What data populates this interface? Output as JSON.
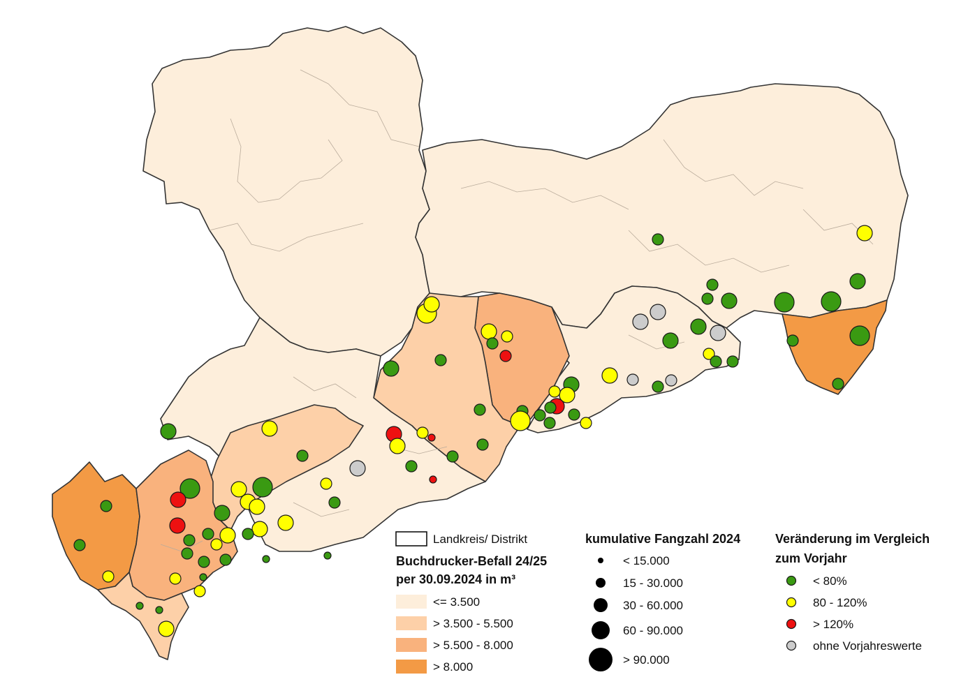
{
  "colors": {
    "class_0": "#fdeedb",
    "class_1": "#fdd0a8",
    "class_2": "#f9b27d",
    "class_3": "#f39a45",
    "green": "#3a9a12",
    "yellow": "#ffff00",
    "red": "#ee1111",
    "grey": "#cccccc"
  },
  "legend": {
    "district_label": "Landkreis/ Distrikt",
    "infestation_title_1": "Buchdrucker-Befall 24/25",
    "infestation_title_2": "per 30.09.2024 in m³",
    "infestation_classes": [
      "<= 3.500",
      "> 3.500 - 5.500",
      "> 5.500 - 8.000",
      "> 8.000"
    ],
    "catch_title": "kumulative Fangzahl 2024",
    "catch_classes": [
      "< 15.000",
      "15 - 30.000",
      "30 - 60.000",
      "60 - 90.000",
      "> 90.000"
    ],
    "change_title_1": "Veränderung im Vergleich",
    "change_title_2": "zum Vorjahr",
    "change_classes": [
      "< 80%",
      "80 - 120%",
      "> 120%",
      "ohne Vorjahreswerte"
    ]
  },
  "traps": [
    {
      "s": 1,
      "c": "green"
    },
    {
      "s": 2,
      "c": "yellow"
    },
    {
      "s": 2,
      "c": "green"
    },
    {
      "s": 1,
      "c": "green"
    },
    {
      "s": 3,
      "c": "green"
    },
    {
      "s": 3,
      "c": "green"
    },
    {
      "s": 3,
      "c": "green"
    },
    {
      "s": 2,
      "c": "green"
    },
    {
      "s": 1,
      "c": "green"
    },
    {
      "s": 2,
      "c": "grey"
    },
    {
      "s": 2,
      "c": "grey"
    },
    {
      "s": 2,
      "c": "green"
    },
    {
      "s": 2,
      "c": "grey"
    },
    {
      "s": 2,
      "c": "green"
    },
    {
      "s": 1,
      "c": "yellow"
    },
    {
      "s": 1,
      "c": "green"
    },
    {
      "s": 1,
      "c": "green"
    },
    {
      "s": 1,
      "c": "grey"
    },
    {
      "s": 1,
      "c": "grey"
    },
    {
      "s": 1,
      "c": "green"
    },
    {
      "s": 2,
      "c": "yellow"
    },
    {
      "s": 2,
      "c": "green"
    },
    {
      "s": 2,
      "c": "yellow"
    },
    {
      "s": 1,
      "c": "yellow"
    },
    {
      "s": 2,
      "c": "red"
    },
    {
      "s": 1,
      "c": "green"
    },
    {
      "s": 1,
      "c": "green"
    },
    {
      "s": 1,
      "c": "green"
    },
    {
      "s": 1,
      "c": "green"
    },
    {
      "s": 1,
      "c": "yellow"
    },
    {
      "s": 1,
      "c": "green"
    },
    {
      "s": 3,
      "c": "yellow"
    },
    {
      "s": 2,
      "c": "yellow"
    },
    {
      "s": 2,
      "c": "yellow"
    },
    {
      "s": 1,
      "c": "yellow"
    },
    {
      "s": 1,
      "c": "green"
    },
    {
      "s": 1,
      "c": "red"
    },
    {
      "s": 1,
      "c": "green"
    },
    {
      "s": 2,
      "c": "green"
    },
    {
      "s": 1,
      "c": "green"
    },
    {
      "s": 3,
      "c": "yellow"
    },
    {
      "s": 2,
      "c": "red"
    },
    {
      "s": 2,
      "c": "yellow"
    },
    {
      "s": 1,
      "c": "yellow"
    },
    {
      "s": 0,
      "c": "red"
    },
    {
      "s": 1,
      "c": "green"
    },
    {
      "s": 1,
      "c": "green"
    },
    {
      "s": 2,
      "c": "grey"
    },
    {
      "s": 0,
      "c": "red"
    },
    {
      "s": 1,
      "c": "green"
    },
    {
      "s": 1,
      "c": "yellow"
    },
    {
      "s": 1,
      "c": "green"
    },
    {
      "s": 2,
      "c": "yellow"
    },
    {
      "s": 1,
      "c": "green"
    },
    {
      "s": 2,
      "c": "yellow"
    },
    {
      "s": 0,
      "c": "green"
    },
    {
      "s": 0,
      "c": "green"
    },
    {
      "s": 2,
      "c": "yellow"
    },
    {
      "s": 3,
      "c": "green"
    },
    {
      "s": 2,
      "c": "yellow"
    },
    {
      "s": 2,
      "c": "yellow"
    },
    {
      "s": 2,
      "c": "yellow"
    },
    {
      "s": 1,
      "c": "green"
    },
    {
      "s": 2,
      "c": "green"
    },
    {
      "s": 2,
      "c": "yellow"
    },
    {
      "s": 1,
      "c": "green"
    },
    {
      "s": 1,
      "c": "yellow"
    },
    {
      "s": 1,
      "c": "green"
    },
    {
      "s": 1,
      "c": "green"
    },
    {
      "s": 1,
      "c": "green"
    },
    {
      "s": 1,
      "c": "green"
    },
    {
      "s": 3,
      "c": "green"
    },
    {
      "s": 1,
      "c": "green"
    },
    {
      "s": 2,
      "c": "green"
    },
    {
      "s": 2,
      "c": "red"
    },
    {
      "s": 2,
      "c": "red"
    },
    {
      "s": 1,
      "c": "green"
    },
    {
      "s": 0,
      "c": "green"
    },
    {
      "s": 1,
      "c": "green"
    },
    {
      "s": 1,
      "c": "yellow"
    },
    {
      "s": 1,
      "c": "yellow"
    },
    {
      "s": 0,
      "c": "green"
    },
    {
      "s": 1,
      "c": "yellow"
    },
    {
      "s": 0,
      "c": "green"
    },
    {
      "s": 2,
      "c": "yellow"
    },
    {
      "s": 1,
      "c": "green"
    },
    {
      "s": 0,
      "c": "green"
    },
    {
      "s": 1,
      "c": "green"
    }
  ]
}
